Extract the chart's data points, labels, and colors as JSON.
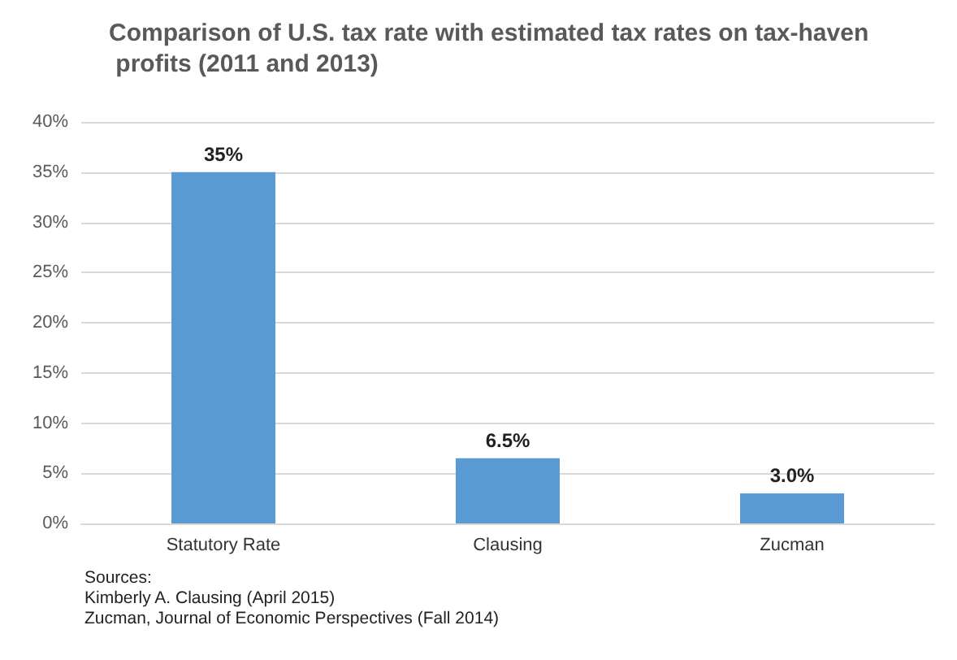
{
  "chart_data": {
    "type": "bar",
    "title": "Comparison of U.S. tax rate with estimated tax rates on tax-haven profits (2011 and 2013)",
    "categories": [
      "Statutory Rate",
      "Clausing",
      "Zucman"
    ],
    "values": [
      35,
      6.5,
      3.0
    ],
    "value_labels": [
      "35%",
      "6.5%",
      "3.0%"
    ],
    "color": "#5b9bd5",
    "ylim": [
      0,
      40
    ],
    "yticks": [
      {
        "value": 0,
        "label": "0%"
      },
      {
        "value": 5,
        "label": "5%"
      },
      {
        "value": 10,
        "label": "10%"
      },
      {
        "value": 15,
        "label": "15%"
      },
      {
        "value": 20,
        "label": "20%"
      },
      {
        "value": 25,
        "label": "25%"
      },
      {
        "value": 30,
        "label": "30%"
      },
      {
        "value": 35,
        "label": "35%"
      },
      {
        "value": 40,
        "label": "40%"
      }
    ],
    "grid": "y",
    "annotations": [
      "Sources:",
      "Kimberly A. Clausing (April 2015)",
      "Zucman, Journal of Economic Perspectives (Fall 2014)"
    ]
  }
}
